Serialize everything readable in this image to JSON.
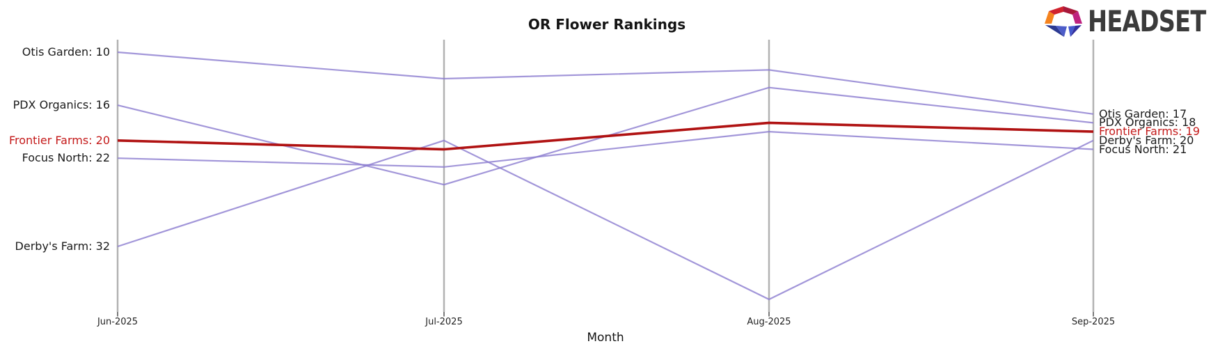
{
  "header": {
    "logo_text": "HEADSET",
    "logo_colors": {
      "orange": "#f5831e",
      "red": "#d0222e",
      "maroon": "#a8193b",
      "magenta": "#bf2380",
      "wing_left_dark": "#2c3a92",
      "wing_left_light": "#4d5dc9",
      "wing_right_light": "#4458cd",
      "wing_right_dark": "#32309e"
    }
  },
  "chart_data": {
    "type": "line",
    "variant": "bump-ranking",
    "title": "OR Flower Rankings",
    "xlabel": "Month",
    "categories": [
      "Jun-2025",
      "Jul-2025",
      "Aug-2025",
      "Sep-2025"
    ],
    "y_axis": {
      "inverted": true,
      "best_rank_shown": 10,
      "worst_rank_shown": 38
    },
    "legend": "none",
    "grid": "vertical-axes-only",
    "series": [
      {
        "name": "Otis Garden",
        "values": [
          10,
          13,
          12,
          17
        ],
        "start_label": "Otis Garden: 10",
        "end_label": "Otis Garden: 17",
        "highlight": false
      },
      {
        "name": "PDX Organics",
        "values": [
          16,
          25,
          14,
          18
        ],
        "start_label": "PDX Organics: 16",
        "end_label": "PDX Organics: 18",
        "highlight": false
      },
      {
        "name": "Frontier Farms",
        "values": [
          20,
          21,
          18,
          19
        ],
        "start_label": "Frontier Farms: 20",
        "end_label": "Frontier Farms: 19",
        "highlight": true
      },
      {
        "name": "Focus North",
        "values": [
          22,
          23,
          19,
          21
        ],
        "start_label": "Focus North: 22",
        "end_label": "Focus North: 21",
        "highlight": false
      },
      {
        "name": "Derby's Farm",
        "values": [
          32,
          20,
          38,
          20
        ],
        "start_label": "Derby's Farm: 32",
        "end_label": "Derby's Farm: 20",
        "highlight": false
      }
    ],
    "colors": {
      "line_default": "#8b7ccf",
      "line_highlight": "#b01212",
      "label_default": "#1a1a1a",
      "label_highlight": "#c41a1a",
      "axis": "#b2b2b2",
      "tick": "#333333"
    }
  }
}
